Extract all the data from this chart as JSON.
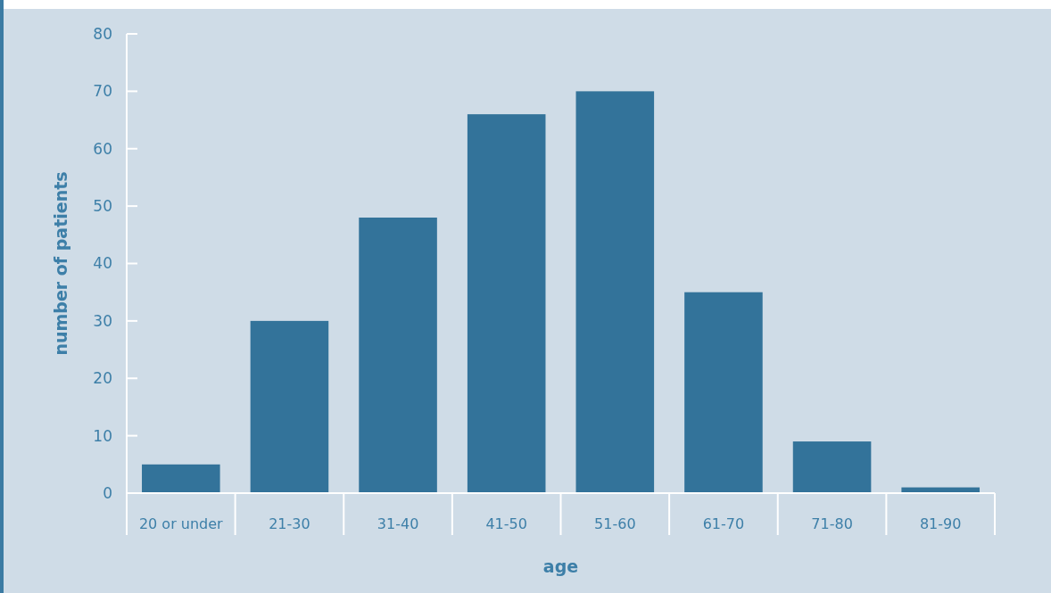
{
  "chart_data": {
    "type": "bar",
    "xlabel": "age",
    "ylabel": "number of patients",
    "categories": [
      "20 or under",
      "21-30",
      "31-40",
      "41-50",
      "51-60",
      "61-70",
      "71-80",
      "81-90"
    ],
    "values": [
      5,
      30,
      48,
      66,
      70,
      35,
      9,
      1
    ],
    "color": "#33739a",
    "ylim": [
      0,
      80
    ],
    "yticks": [
      0,
      10,
      20,
      30,
      40,
      50,
      60,
      70,
      80
    ],
    "grid": false
  }
}
